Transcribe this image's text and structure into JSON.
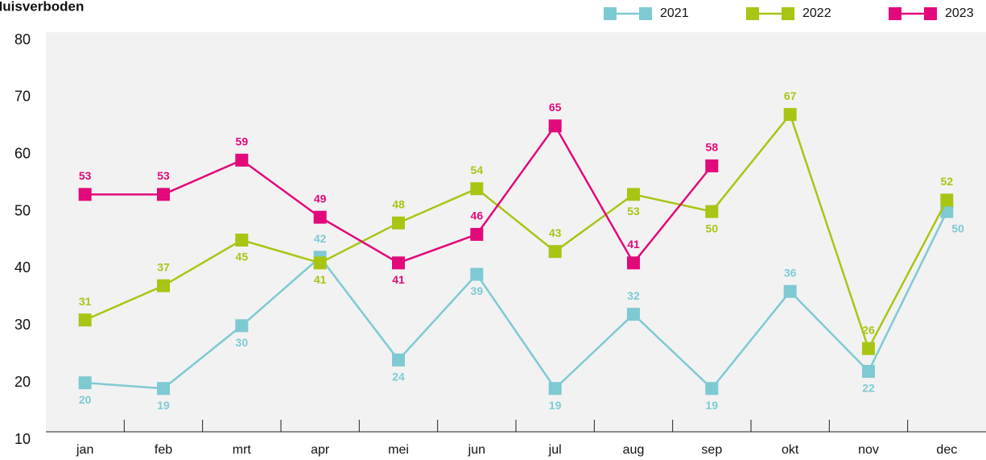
{
  "chart_data": {
    "type": "line",
    "title": "Huisverboden",
    "categories": [
      "jan",
      "feb",
      "mrt",
      "apr",
      "mei",
      "jun",
      "jul",
      "aug",
      "sep",
      "okt",
      "nov",
      "dec"
    ],
    "series": [
      {
        "name": "2021",
        "color": "#7ecad3",
        "values": [
          20,
          19,
          30,
          42,
          24,
          39,
          19,
          32,
          19,
          36,
          22,
          50
        ]
      },
      {
        "name": "2022",
        "color": "#a8c514",
        "values": [
          31,
          37,
          45,
          41,
          48,
          54,
          43,
          53,
          50,
          67,
          26,
          52
        ]
      },
      {
        "name": "2023",
        "color": "#e2097b",
        "values": [
          53,
          53,
          59,
          49,
          41,
          46,
          65,
          41,
          58,
          null,
          null,
          null
        ]
      }
    ],
    "ylim": [
      10,
      80
    ],
    "yticks": [
      10,
      20,
      30,
      40,
      50,
      60,
      70,
      80
    ],
    "grid": false,
    "legend": "top-right"
  }
}
